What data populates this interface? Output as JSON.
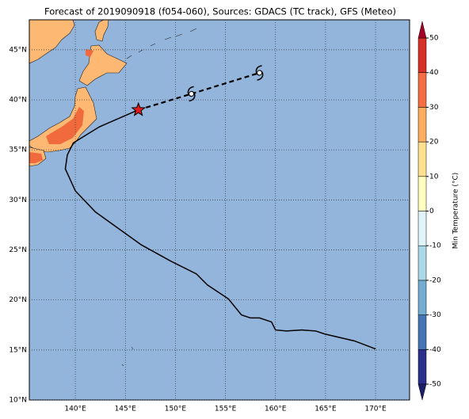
{
  "map": {
    "title": "Forecast of 2019090918 (f054-060), Sources: GDACS (TC track), GFS (Meteo)",
    "lonlim": [
      135.4,
      173.4
    ],
    "latlim": [
      10,
      48
    ],
    "xticks": [
      {
        "value": 140,
        "label": "140°E"
      },
      {
        "value": 145,
        "label": "145°E"
      },
      {
        "value": 150,
        "label": "150°E"
      },
      {
        "value": 155,
        "label": "155°E"
      },
      {
        "value": 160,
        "label": "160°E"
      },
      {
        "value": 165,
        "label": "165°E"
      },
      {
        "value": 170,
        "label": "170°E"
      }
    ],
    "yticks": [
      {
        "value": 10,
        "label": "10°N"
      },
      {
        "value": 15,
        "label": "15°N"
      },
      {
        "value": 20,
        "label": "20°N"
      },
      {
        "value": 25,
        "label": "25°N"
      },
      {
        "value": 30,
        "label": "30°N"
      },
      {
        "value": 35,
        "label": "35°N"
      },
      {
        "value": 40,
        "label": "40°N"
      },
      {
        "value": 45,
        "label": "45°N"
      }
    ],
    "track": {
      "lon": [
        170.0,
        167.9,
        164.9,
        164.0,
        162.6,
        161.1,
        160.0,
        159.6,
        158.4,
        157.5,
        156.6,
        155.3,
        153.2,
        152.1,
        149.5,
        146.6,
        142.0,
        140.0,
        139.0,
        139.2,
        139.8,
        142.4,
        146.3
      ],
      "lat": [
        15.1,
        15.9,
        16.6,
        16.9,
        17.0,
        16.9,
        17.0,
        17.8,
        18.2,
        18.2,
        18.5,
        20.1,
        21.5,
        22.6,
        23.9,
        25.5,
        28.8,
        30.9,
        33.1,
        34.5,
        35.7,
        37.3,
        39.0
      ]
    },
    "forecast": {
      "lon": [
        146.3,
        151.6,
        158.4
      ],
      "lat": [
        39.0,
        40.6,
        42.7
      ]
    },
    "colorbar": {
      "label": "Min Temperature (°C)",
      "ticks": [
        -50,
        -40,
        -30,
        -20,
        -10,
        0,
        10,
        20,
        30,
        40,
        50
      ],
      "colors": [
        "#2b2f8c",
        "#4575b4",
        "#74add1",
        "#abd9e9",
        "#e0f3f8",
        "#ffffbf",
        "#fee090",
        "#fdae61",
        "#f46d43",
        "#d73027"
      ],
      "under": "#1d1f6b",
      "over": "#a50026"
    }
  }
}
